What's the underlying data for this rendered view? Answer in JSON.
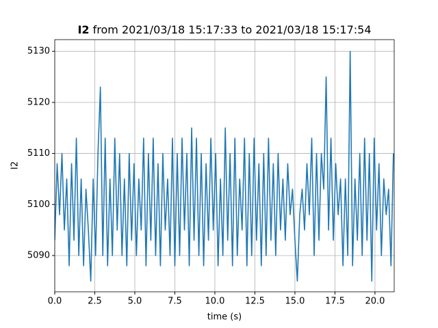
{
  "chart_data": {
    "type": "line",
    "title_variable": "I2",
    "title": "from 2021/03/18 15:17:33 to 2021/03/18 15:17:54",
    "x_label": "time (s)",
    "y_label": "I2",
    "xlim": [
      0,
      21.2
    ],
    "ylim": [
      5082.9,
      5132.3
    ],
    "xticks": [
      {
        "value": 0,
        "label": "0.0"
      },
      {
        "value": 2.5,
        "label": "2.5"
      },
      {
        "value": 5,
        "label": "5.0"
      },
      {
        "value": 7.5,
        "label": "7.5"
      },
      {
        "value": 10,
        "label": "10.0"
      },
      {
        "value": 12.5,
        "label": "12.5"
      },
      {
        "value": 15,
        "label": "15.0"
      },
      {
        "value": 17.5,
        "label": "17.5"
      },
      {
        "value": 20,
        "label": "20.0"
      }
    ],
    "yticks": [
      5090,
      5100,
      5110,
      5120,
      5130
    ],
    "grid": true,
    "x": [
      0,
      0.15,
      0.3,
      0.45,
      0.6,
      0.75,
      0.9,
      1.05,
      1.2,
      1.35,
      1.5,
      1.65,
      1.8,
      1.95,
      2.1,
      2.25,
      2.4,
      2.55,
      2.7,
      2.85,
      3,
      3.15,
      3.3,
      3.45,
      3.6,
      3.75,
      3.9,
      4.05,
      4.2,
      4.35,
      4.5,
      4.65,
      4.8,
      4.95,
      5.1,
      5.25,
      5.4,
      5.55,
      5.7,
      5.85,
      6,
      6.15,
      6.3,
      6.45,
      6.6,
      6.75,
      6.9,
      7.05,
      7.2,
      7.35,
      7.5,
      7.65,
      7.8,
      7.95,
      8.1,
      8.25,
      8.4,
      8.55,
      8.7,
      8.85,
      9,
      9.15,
      9.3,
      9.45,
      9.6,
      9.75,
      9.9,
      10.05,
      10.2,
      10.35,
      10.5,
      10.65,
      10.8,
      10.95,
      11.1,
      11.25,
      11.4,
      11.55,
      11.7,
      11.85,
      12,
      12.15,
      12.3,
      12.45,
      12.6,
      12.75,
      12.9,
      13.05,
      13.2,
      13.35,
      13.5,
      13.65,
      13.8,
      13.95,
      14.1,
      14.25,
      14.4,
      14.55,
      14.7,
      14.85,
      15,
      15.15,
      15.3,
      15.45,
      15.6,
      15.75,
      15.9,
      16.05,
      16.2,
      16.35,
      16.5,
      16.65,
      16.8,
      16.95,
      17.1,
      17.25,
      17.4,
      17.55,
      17.7,
      17.85,
      18,
      18.15,
      18.3,
      18.45,
      18.6,
      18.75,
      18.9,
      19.05,
      19.2,
      19.35,
      19.5,
      19.65,
      19.8,
      19.95,
      20.1,
      20.25,
      20.4,
      20.55,
      20.7,
      20.85,
      21,
      21.15
    ],
    "series": [
      {
        "name": "I2",
        "color": "#1f77b4",
        "values": [
          5093,
          5108,
          5098,
          5110,
          5095,
          5105,
          5088,
          5108,
          5093,
          5113,
          5090,
          5105,
          5088,
          5103,
          5095,
          5085,
          5105,
          5090,
          5110,
          5123,
          5090,
          5113,
          5088,
          5105,
          5090,
          5113,
          5095,
          5110,
          5090,
          5105,
          5088,
          5110,
          5093,
          5108,
          5090,
          5105,
          5095,
          5113,
          5088,
          5110,
          5093,
          5113,
          5090,
          5108,
          5088,
          5110,
          5095,
          5105,
          5090,
          5113,
          5088,
          5110,
          5090,
          5113,
          5095,
          5110,
          5088,
          5115,
          5093,
          5113,
          5090,
          5110,
          5088,
          5108,
          5093,
          5113,
          5095,
          5110,
          5088,
          5105,
          5090,
          5115,
          5093,
          5110,
          5088,
          5113,
          5090,
          5105,
          5095,
          5113,
          5088,
          5110,
          5090,
          5113,
          5093,
          5108,
          5088,
          5110,
          5090,
          5113,
          5093,
          5108,
          5090,
          5110,
          5095,
          5105,
          5093,
          5108,
          5098,
          5103,
          5093,
          5085,
          5098,
          5103,
          5095,
          5108,
          5098,
          5113,
          5090,
          5110,
          5093,
          5110,
          5103,
          5125,
          5095,
          5113,
          5093,
          5108,
          5098,
          5105,
          5088,
          5105,
          5090,
          5130,
          5088,
          5105,
          5093,
          5110,
          5090,
          5113,
          5093,
          5110,
          5085,
          5113,
          5095,
          5108,
          5090,
          5105,
          5098,
          5103,
          5088,
          5110
        ]
      }
    ]
  }
}
